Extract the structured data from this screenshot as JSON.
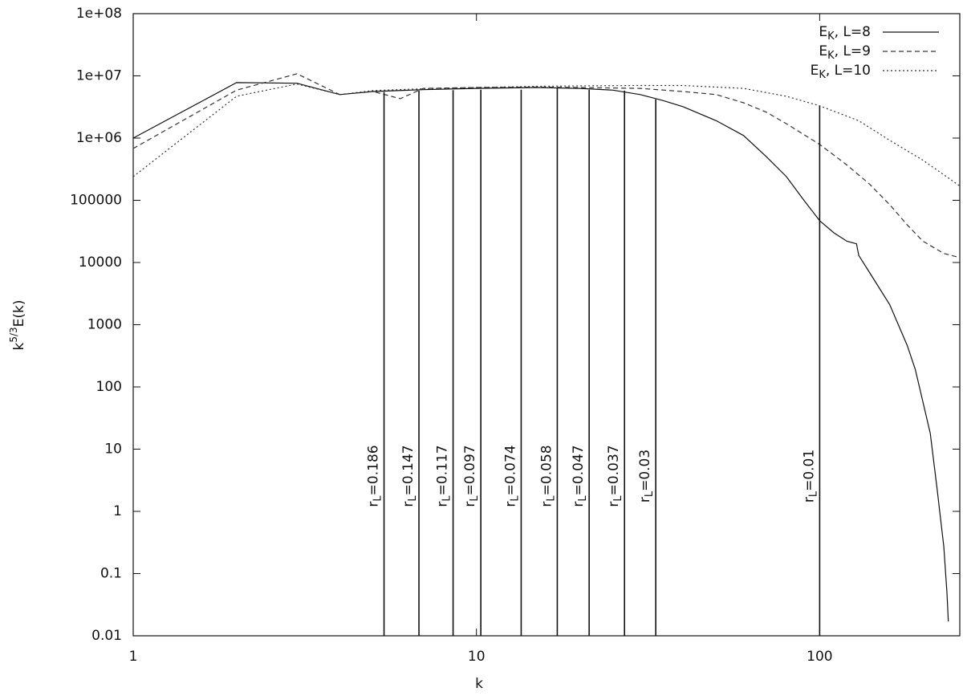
{
  "chart_data": {
    "type": "line",
    "x_label": "k",
    "y_label": {
      "base": "k",
      "sup": "5/3",
      "rest": "E(k)"
    },
    "xlog": true,
    "ylog": true,
    "xlim": [
      1,
      256
    ],
    "ylim": [
      0.01,
      100000000
    ],
    "xticks": [
      1,
      10,
      100
    ],
    "yticks": [
      0.01,
      0.1,
      1,
      10,
      100,
      1000,
      10000,
      100000,
      {
        "value": 1000000,
        "label": "1e+06"
      },
      {
        "value": 10000000,
        "label": "1e+07"
      },
      {
        "value": 100000000,
        "label": "1e+08"
      }
    ],
    "legend": "top-right",
    "series": [
      {
        "name": {
          "base": "E",
          "sub": "K",
          "rest": ", L=8"
        },
        "color": "#111111",
        "dash": "solid",
        "x": [
          1,
          2,
          3,
          4,
          5,
          7,
          10,
          15,
          20,
          25,
          30,
          35,
          40,
          50,
          60,
          70,
          80,
          90,
          100,
          110,
          120,
          128,
          130,
          140,
          160,
          180,
          190,
          200,
          210,
          220,
          230,
          235,
          237
        ],
        "values": [
          1000000,
          7800000,
          7600000,
          5000000,
          5600000,
          6000000,
          6300000,
          6500000,
          6300000,
          5900000,
          5000000,
          4000000,
          3200000,
          1900000,
          1100000,
          500000,
          240000,
          100000,
          47000,
          30000,
          22000,
          20000,
          13000,
          6800,
          2100,
          460,
          190,
          57,
          18,
          2.2,
          0.27,
          0.047,
          0.017
        ]
      },
      {
        "name": {
          "base": "E",
          "sub": "K",
          "rest": ", L=9"
        },
        "color": "#333333",
        "dash": "dashed",
        "x": [
          1,
          2,
          3,
          4,
          5,
          6,
          7,
          10,
          15,
          20,
          30,
          40,
          50,
          60,
          70,
          80,
          100,
          120,
          140,
          160,
          180,
          200,
          230,
          256
        ],
        "values": [
          680000,
          5900000,
          10800000,
          5000000,
          5600000,
          4300000,
          6300000,
          6500000,
          6600000,
          6500000,
          6300000,
          5600000,
          5000000,
          3700000,
          2600000,
          1700000,
          790000,
          370000,
          180000,
          85000,
          40000,
          22000,
          14000,
          12000
        ]
      },
      {
        "name": {
          "base": "E",
          "sub": "K",
          "rest": ", L=10"
        },
        "color": "#333333",
        "dash": "dotted",
        "x": [
          1,
          2,
          3,
          4,
          5,
          7,
          10,
          15,
          20,
          30,
          40,
          60,
          80,
          100,
          130,
          160,
          200,
          256
        ],
        "values": [
          240000,
          4700000,
          7400000,
          5000000,
          5800000,
          6200000,
          6500000,
          6800000,
          6900000,
          7000000,
          7000000,
          6300000,
          4700000,
          3300000,
          1900000,
          920000,
          440000,
          170000
        ]
      }
    ],
    "marker_prefix": {
      "base": "r",
      "sub": "L"
    },
    "markers": [
      {
        "x": 5.38,
        "y": 5500000,
        "label": "=0.186"
      },
      {
        "x": 6.8,
        "y": 5800000,
        "label": "=0.147"
      },
      {
        "x": 8.55,
        "y": 5900000,
        "label": "=0.117"
      },
      {
        "x": 10.3,
        "y": 6000000,
        "label": "=0.097"
      },
      {
        "x": 13.5,
        "y": 6000000,
        "label": "=0.074"
      },
      {
        "x": 17.2,
        "y": 6500000,
        "label": "=0.058"
      },
      {
        "x": 21.3,
        "y": 6000000,
        "label": "=0.047"
      },
      {
        "x": 27,
        "y": 5800000,
        "label": "=0.037"
      },
      {
        "x": 33.3,
        "y": 4200000,
        "label": "=0.03"
      },
      {
        "x": 100,
        "y": 3300000,
        "label": "=0.01"
      }
    ]
  }
}
